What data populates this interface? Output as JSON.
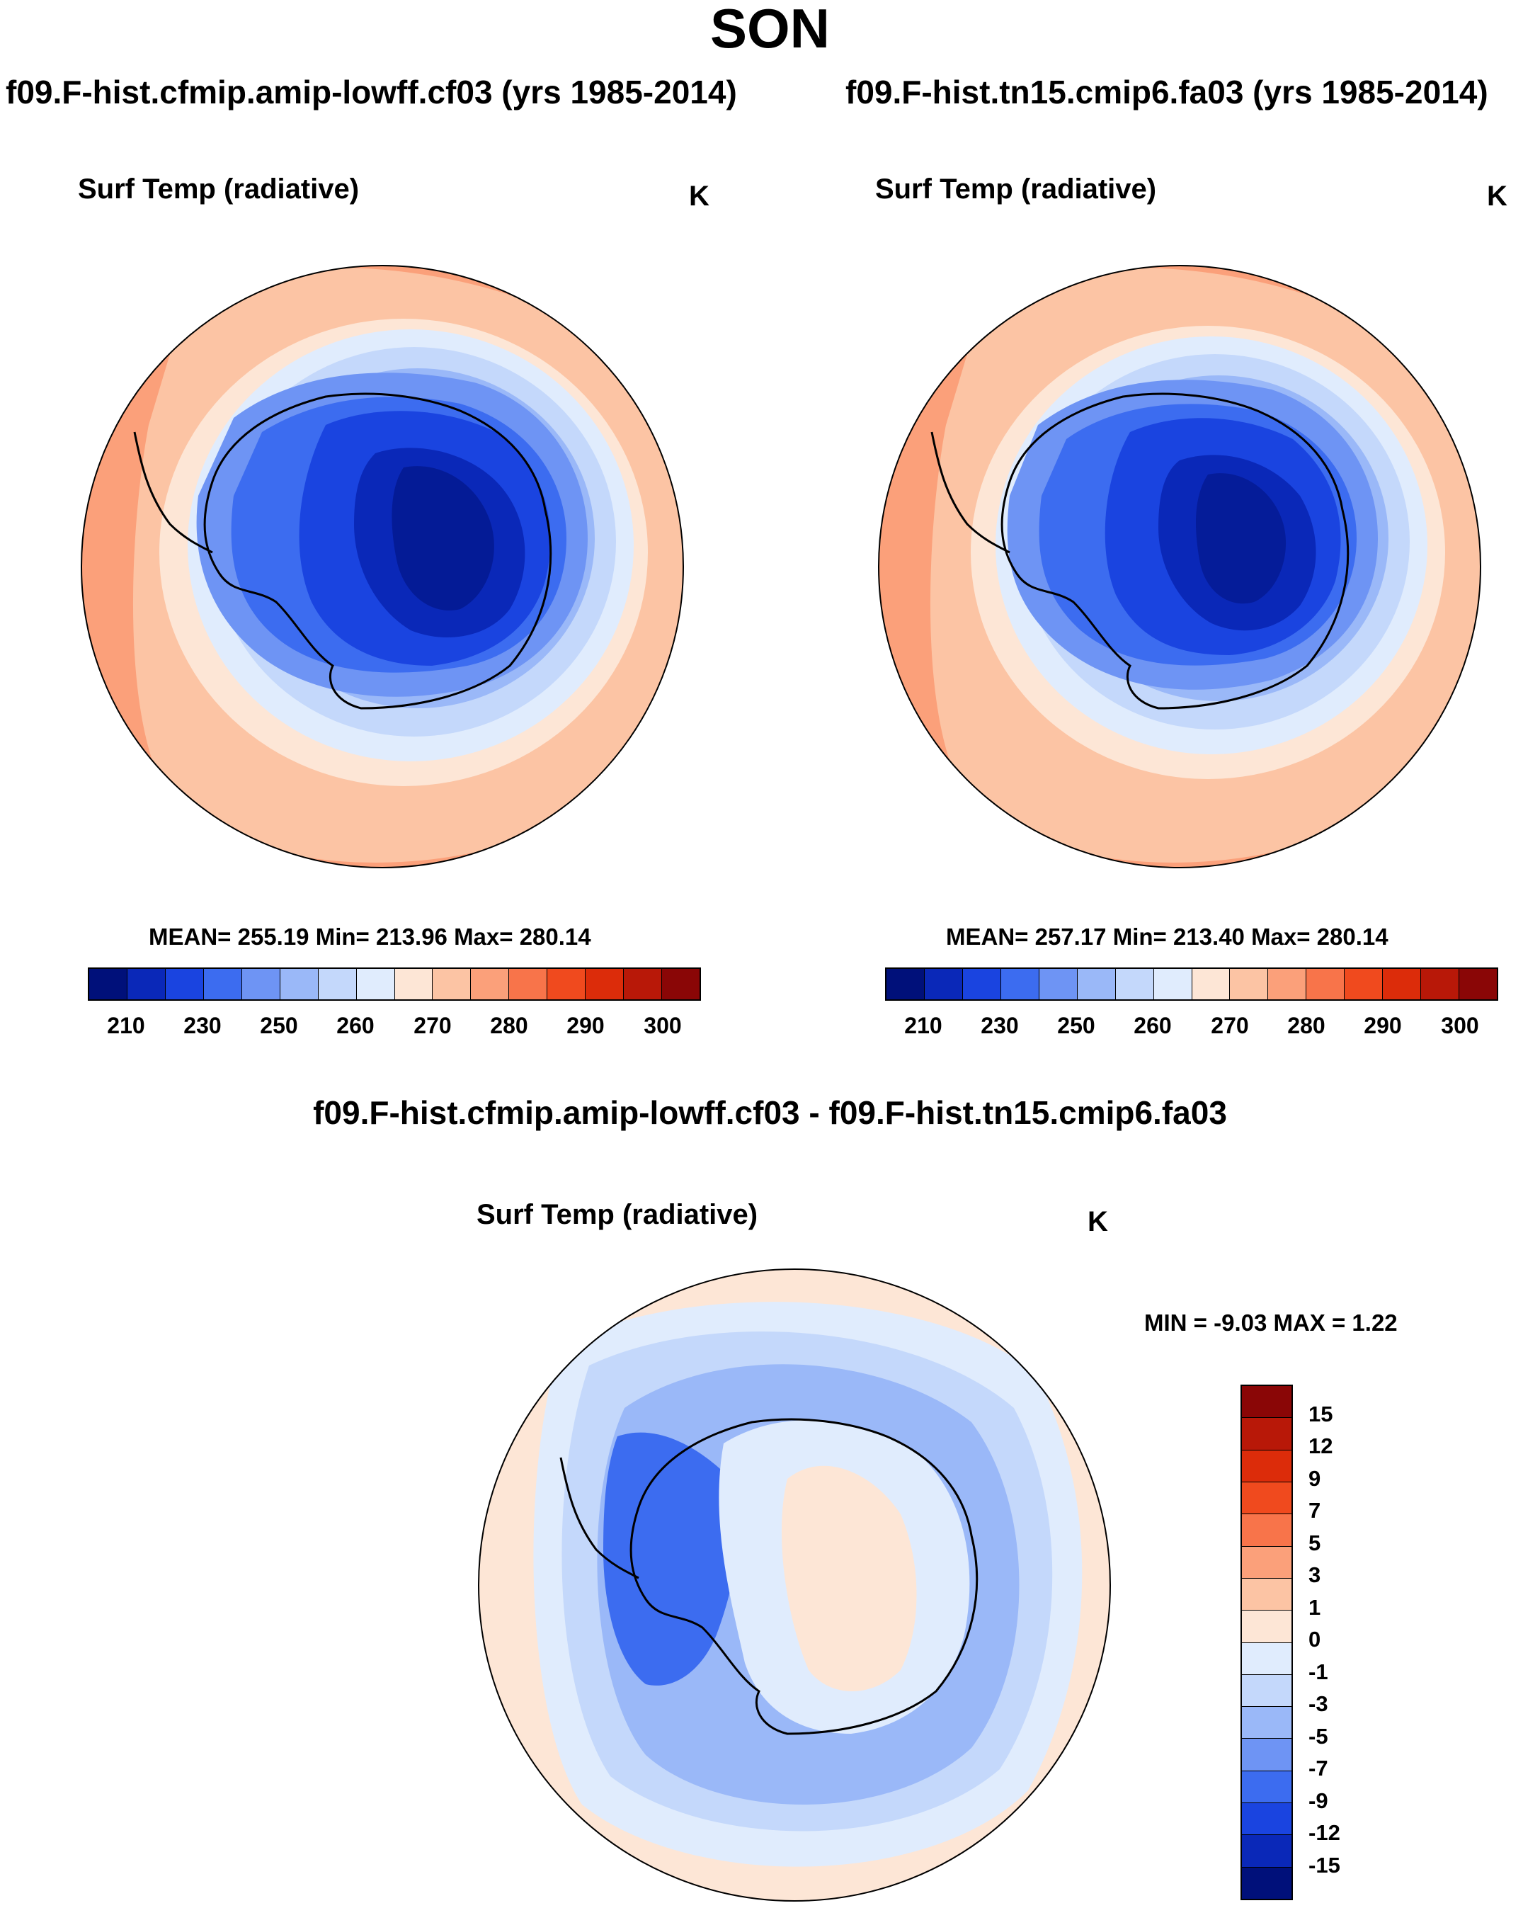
{
  "title": "SON",
  "panels": [
    {
      "run_title": "f09.F-hist.cfmip.amip-lowff.cf03 (yrs 1985-2014)",
      "variable": "Surf Temp (radiative)",
      "units": "K",
      "stats_text": "MEAN= 255.19  Min= 213.96  Max= 280.14",
      "colorbar_ticks": [
        "210",
        "230",
        "250",
        "260",
        "270",
        "280",
        "290",
        "300"
      ],
      "colors": [
        "#00107a",
        "#0a28b8",
        "#1a44e0",
        "#3c6cf0",
        "#6e94f4",
        "#9ab8f8",
        "#c4d8fb",
        "#e0ecfd",
        "#fde6d6",
        "#fcc4a4",
        "#fba07a",
        "#f8744a",
        "#f04a1e",
        "#dc2c0a",
        "#b81808",
        "#8a0606"
      ]
    },
    {
      "run_title": "f09.F-hist.tn15.cmip6.fa03 (yrs 1985-2014)",
      "variable": "Surf Temp (radiative)",
      "units": "K",
      "stats_text": "MEAN= 257.17  Min= 213.40  Max= 280.14",
      "colorbar_ticks": [
        "210",
        "230",
        "250",
        "260",
        "270",
        "280",
        "290",
        "300"
      ],
      "colors": [
        "#00107a",
        "#0a28b8",
        "#1a44e0",
        "#3c6cf0",
        "#6e94f4",
        "#9ab8f8",
        "#c4d8fb",
        "#e0ecfd",
        "#fde6d6",
        "#fcc4a4",
        "#fba07a",
        "#f8744a",
        "#f04a1e",
        "#dc2c0a",
        "#b81808",
        "#8a0606"
      ]
    }
  ],
  "difference": {
    "title": "f09.F-hist.cfmip.amip-lowff.cf03 - f09.F-hist.tn15.cmip6.fa03",
    "variable": "Surf Temp (radiative)",
    "units": "K",
    "stats_text": "MIN =  -9.03 MAX =   1.22",
    "colorbar_ticks": [
      "15",
      "12",
      "9",
      "7",
      "5",
      "3",
      "1",
      "0",
      "-1",
      "-3",
      "-5",
      "-7",
      "-9",
      "-12",
      "-15"
    ],
    "colors": [
      "#8a0606",
      "#b81808",
      "#dc2c0a",
      "#f04a1e",
      "#f8744a",
      "#fba07a",
      "#fcc4a4",
      "#fde6d6",
      "#e0ecfd",
      "#c4d8fb",
      "#9ab8f8",
      "#6e94f4",
      "#3c6cf0",
      "#1a44e0",
      "#0a28b8",
      "#00107a"
    ]
  }
}
